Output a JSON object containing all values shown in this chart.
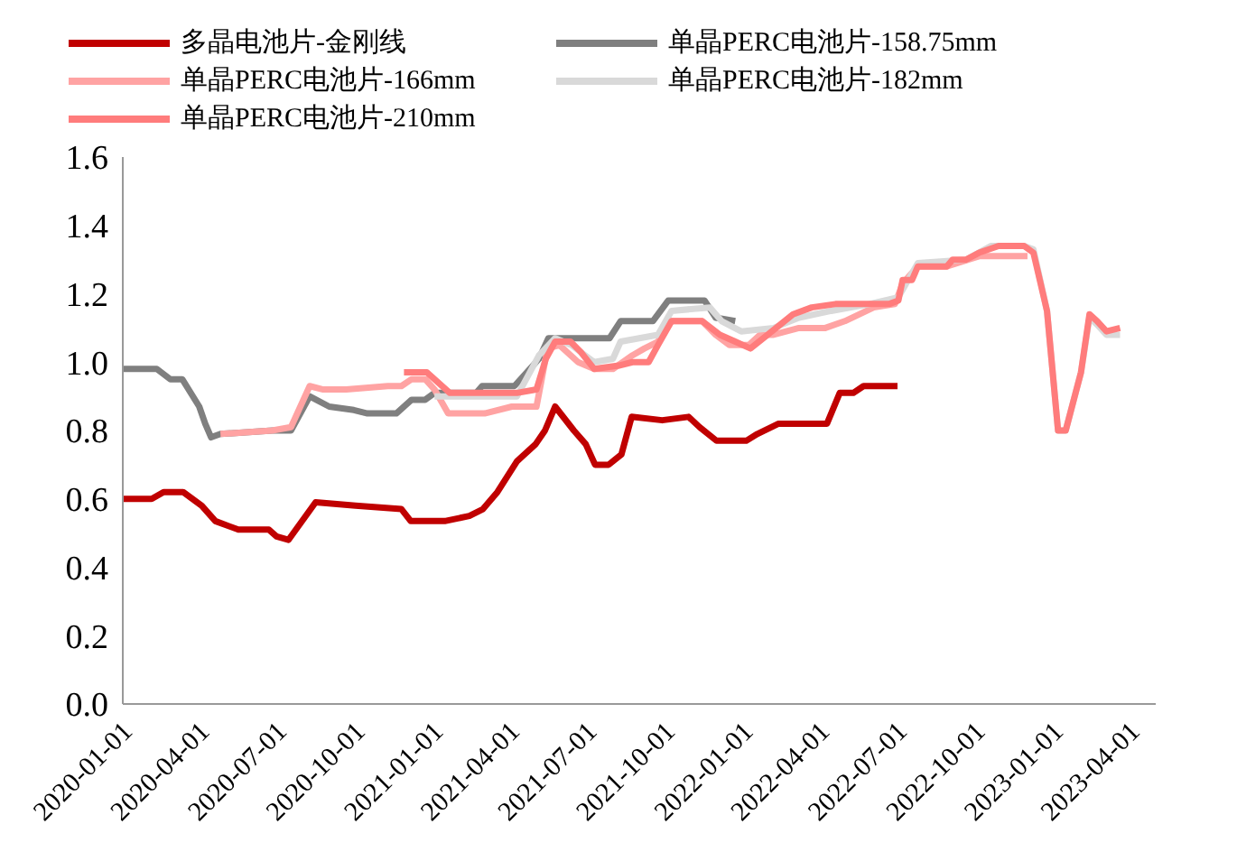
{
  "chart_data": {
    "type": "line",
    "xlim": [
      "2020-01-01",
      "2023-05-01"
    ],
    "xticks": [
      "2020-01-01",
      "2020-04-01",
      "2020-07-01",
      "2020-10-01",
      "2021-01-01",
      "2021-04-01",
      "2021-07-01",
      "2021-10-01",
      "2022-01-01",
      "2022-04-01",
      "2022-07-01",
      "2022-10-01",
      "2023-01-01",
      "2023-04-01"
    ],
    "ylim": [
      0,
      1.6
    ],
    "yticks": [
      {
        "value": 0,
        "label": "0.0"
      },
      {
        "value": 0.2,
        "label": "0.2"
      },
      {
        "value": 0.4,
        "label": "0.4"
      },
      {
        "value": 0.6,
        "label": "0.6"
      },
      {
        "value": 0.8,
        "label": "0.8"
      },
      {
        "value": 1.0,
        "label": "1.0"
      },
      {
        "value": 1.2,
        "label": "1.2"
      },
      {
        "value": 1.4,
        "label": "1.4"
      },
      {
        "value": 1.6,
        "label": "1.6"
      }
    ],
    "grid": false,
    "legend": "top",
    "marker": "none",
    "line_style": "solid",
    "series": [
      {
        "name": "多晶电池片-金刚线",
        "color": "#c00000",
        "x": [
          "2020-01-01",
          "2020-02-04",
          "2020-02-18",
          "2020-03-12",
          "2020-04-03",
          "2020-04-19",
          "2020-05-16",
          "2020-06-21",
          "2020-06-30",
          "2020-07-14",
          "2020-08-15",
          "2020-10-01",
          "2020-11-24",
          "2020-12-05",
          "2021-01-14",
          "2021-02-12",
          "2021-02-28",
          "2021-03-17",
          "2021-04-09",
          "2021-05-01",
          "2021-05-12",
          "2021-05-24",
          "2021-06-15",
          "2021-06-29",
          "2021-07-10",
          "2021-07-26",
          "2021-08-10",
          "2021-08-22",
          "2021-09-27",
          "2021-10-28",
          "2021-11-10",
          "2021-11-30",
          "2022-01-04",
          "2022-01-17",
          "2022-02-11",
          "2022-04-09",
          "2022-04-24",
          "2022-05-10",
          "2022-05-22",
          "2022-07-01"
        ],
        "values": [
          0.6,
          0.6,
          0.62,
          0.62,
          0.58,
          0.535,
          0.51,
          0.51,
          0.49,
          0.48,
          0.59,
          0.58,
          0.57,
          0.535,
          0.535,
          0.55,
          0.57,
          0.62,
          0.71,
          0.76,
          0.8,
          0.87,
          0.8,
          0.76,
          0.7,
          0.7,
          0.73,
          0.84,
          0.83,
          0.84,
          0.81,
          0.77,
          0.77,
          0.79,
          0.82,
          0.82,
          0.91,
          0.91,
          0.93,
          0.93
        ]
      },
      {
        "name": "单晶PERC电池片-158.75mm",
        "color": "#7f7f7f",
        "x": [
          "2020-01-01",
          "2020-02-10",
          "2020-02-26",
          "2020-03-11",
          "2020-03-31",
          "2020-04-07",
          "2020-04-14",
          "2020-04-25",
          "2020-06-25",
          "2020-07-17",
          "2020-08-08",
          "2020-08-31",
          "2020-09-29",
          "2020-10-15",
          "2020-11-18",
          "2020-12-06",
          "2020-12-22",
          "2021-01-02",
          "2021-02-20",
          "2021-02-27",
          "2021-04-06",
          "2021-04-17",
          "2021-05-05",
          "2021-05-16",
          "2021-06-12",
          "2021-07-27",
          "2021-08-09",
          "2021-09-16",
          "2021-10-04",
          "2021-11-16",
          "2021-11-29",
          "2021-12-22"
        ],
        "values": [
          0.98,
          0.98,
          0.95,
          0.95,
          0.87,
          0.82,
          0.78,
          0.79,
          0.8,
          0.8,
          0.9,
          0.87,
          0.86,
          0.85,
          0.85,
          0.89,
          0.89,
          0.91,
          0.91,
          0.93,
          0.93,
          0.96,
          1.01,
          1.07,
          1.07,
          1.07,
          1.12,
          1.12,
          1.18,
          1.18,
          1.13,
          1.12
        ]
      },
      {
        "name": "单晶PERC电池片-166mm",
        "color": "#ffa3a3",
        "x": [
          "2020-04-25",
          "2020-06-25",
          "2020-07-17",
          "2020-08-08",
          "2020-08-24",
          "2020-09-20",
          "2020-11-08",
          "2020-11-24",
          "2020-12-06",
          "2020-12-22",
          "2021-01-02",
          "2021-01-18",
          "2021-03-02",
          "2021-04-03",
          "2021-05-02",
          "2021-05-15",
          "2021-05-29",
          "2021-06-20",
          "2021-07-09",
          "2021-07-31",
          "2021-08-23",
          "2021-09-06",
          "2021-09-22",
          "2021-10-08",
          "2021-11-13",
          "2021-11-29",
          "2021-12-15",
          "2022-01-07",
          "2022-01-20",
          "2022-02-05",
          "2022-03-07",
          "2022-04-07",
          "2022-04-30",
          "2022-06-03",
          "2022-06-28",
          "2022-07-07",
          "2022-07-25",
          "2022-08-28",
          "2022-10-05",
          "2022-12-01"
        ],
        "values": [
          0.79,
          0.8,
          0.81,
          0.93,
          0.92,
          0.92,
          0.93,
          0.93,
          0.95,
          0.95,
          0.92,
          0.85,
          0.85,
          0.87,
          0.87,
          1.04,
          1.05,
          1.0,
          0.98,
          0.98,
          1.02,
          1.04,
          1.06,
          1.12,
          1.12,
          1.08,
          1.05,
          1.05,
          1.08,
          1.08,
          1.1,
          1.1,
          1.12,
          1.16,
          1.17,
          1.23,
          1.28,
          1.28,
          1.31,
          1.31
        ]
      },
      {
        "name": "单晶PERC电池片-182mm",
        "color": "#d9d9d9",
        "x": [
          "2021-01-02",
          "2021-04-09",
          "2021-05-05",
          "2021-05-24",
          "2021-06-12",
          "2021-07-09",
          "2021-07-31",
          "2021-08-09",
          "2021-09-22",
          "2021-10-08",
          "2021-11-22",
          "2021-12-06",
          "2021-12-29",
          "2022-02-05",
          "2022-03-07",
          "2022-04-14",
          "2022-05-29",
          "2022-07-02",
          "2022-07-25",
          "2022-09-20",
          "2022-10-19",
          "2022-11-27",
          "2022-12-08",
          "2022-12-24",
          "2023-01-06",
          "2023-01-15",
          "2023-02-02",
          "2023-02-12",
          "2023-02-21",
          "2023-03-04",
          "2023-03-20"
        ],
        "values": [
          0.9,
          0.9,
          1.02,
          1.07,
          1.05,
          1.0,
          1.01,
          1.06,
          1.08,
          1.15,
          1.16,
          1.12,
          1.09,
          1.1,
          1.13,
          1.15,
          1.17,
          1.19,
          1.29,
          1.3,
          1.34,
          1.34,
          1.33,
          1.15,
          0.8,
          0.8,
          0.97,
          1.13,
          1.11,
          1.08,
          1.08
        ]
      },
      {
        "name": "单晶PERC电池片-210mm",
        "color": "#ff7c7c",
        "x": [
          "2020-11-27",
          "2020-12-24",
          "2021-01-20",
          "2021-04-09",
          "2021-05-02",
          "2021-05-13",
          "2021-05-24",
          "2021-06-11",
          "2021-06-23",
          "2021-07-09",
          "2021-08-07",
          "2021-08-23",
          "2021-09-11",
          "2021-09-22",
          "2021-10-08",
          "2021-11-13",
          "2021-12-04",
          "2021-12-22",
          "2022-01-09",
          "2022-01-29",
          "2022-02-28",
          "2022-03-22",
          "2022-04-19",
          "2022-06-21",
          "2022-07-02",
          "2022-07-07",
          "2022-07-18",
          "2022-07-25",
          "2022-08-28",
          "2022-09-04",
          "2022-09-20",
          "2022-10-05",
          "2022-10-28",
          "2022-11-27",
          "2022-12-08",
          "2022-12-24",
          "2023-01-06",
          "2023-01-15",
          "2023-02-02",
          "2023-02-12",
          "2023-02-21",
          "2023-03-04",
          "2023-03-20"
        ],
        "values": [
          0.97,
          0.97,
          0.91,
          0.91,
          0.92,
          1.01,
          1.06,
          1.06,
          1.03,
          0.98,
          0.99,
          1.0,
          1.0,
          1.05,
          1.12,
          1.12,
          1.08,
          1.06,
          1.04,
          1.08,
          1.14,
          1.16,
          1.17,
          1.17,
          1.18,
          1.24,
          1.24,
          1.28,
          1.28,
          1.3,
          1.3,
          1.32,
          1.34,
          1.34,
          1.32,
          1.15,
          0.8,
          0.8,
          0.97,
          1.14,
          1.12,
          1.09,
          1.1
        ]
      }
    ]
  }
}
